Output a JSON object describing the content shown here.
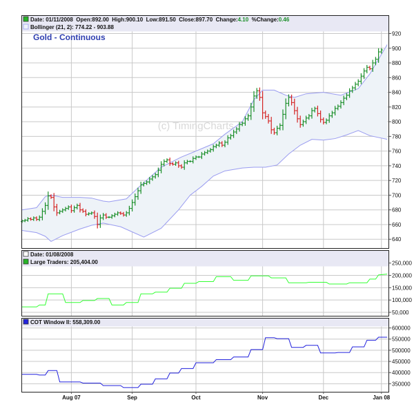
{
  "colors": {
    "frame": "#222222",
    "header_bg": "#e8e8f4",
    "grid": "#c8c8c8",
    "band_fill": "#eef3f8",
    "band_line": "#9a9cf0",
    "up_bar": "#1b8f2a",
    "down_bar": "#d42424",
    "title": "#2f3fb0",
    "green_marker": "#28b428",
    "large_traders_line": "#33ff33",
    "cot_line": "#2222dd",
    "watermark": "#d8d8d8"
  },
  "watermark": "(c) TimingCharts.com",
  "x_axis": {
    "ticks": [
      {
        "label": "Aug 07",
        "day": 17
      },
      {
        "label": "Sep",
        "day": 38
      },
      {
        "label": "Oct",
        "day": 60
      },
      {
        "label": "Nov",
        "day": 83
      },
      {
        "label": "Dec",
        "day": 104
      },
      {
        "label": "Jan 08",
        "day": 124
      }
    ]
  },
  "panels": [
    {
      "id": "price",
      "title": "Gold - Continuous",
      "legend": [
        {
          "marker": "green",
          "segments": [
            {
              "text": "Date: 01/11/2008  Open:892.00  High:900.10  Low:891.50  Close:897.70  Change:"
            },
            {
              "text": "4.10",
              "color": "green"
            },
            {
              "text": "  %Change:"
            },
            {
              "text": "0.46",
              "color": "green"
            }
          ]
        },
        {
          "marker": "band",
          "segments": [
            {
              "text": "Bollinger (21, 2): 774.22 - 903.88"
            }
          ]
        }
      ],
      "y_ticks": [
        "640",
        "660",
        "680",
        "700",
        "720",
        "740",
        "760",
        "780",
        "800",
        "820",
        "840",
        "860",
        "880",
        "900",
        "920"
      ]
    },
    {
      "id": "large-traders",
      "legend": [
        {
          "marker": "white",
          "segments": [
            {
              "text": "Date: 01/08/2008"
            }
          ]
        },
        {
          "marker": "green",
          "segments": [
            {
              "text": "Large Traders: 205,404.00"
            }
          ]
        }
      ],
      "y_ticks": [
        "50,000",
        "100,000",
        "150,000",
        "200,000",
        "250,000"
      ]
    },
    {
      "id": "cot",
      "legend": [
        {
          "marker": "blue",
          "segments": [
            {
              "text": "COT Window II: 558,309.00"
            }
          ]
        }
      ],
      "y_ticks": [
        "350000",
        "400000",
        "450000",
        "500000",
        "550000",
        "600000"
      ]
    }
  ],
  "chart_data": [
    {
      "type": "ohlc",
      "title": "Gold - Continuous",
      "x_unit": "trading day index (0 = first bar, ~late Jul 2007)",
      "x_ticks": [
        "Aug 07",
        "Sep",
        "Oct",
        "Nov",
        "Dec",
        "Jan 08"
      ],
      "ylim": [
        628,
        928
      ],
      "last_bar": {
        "date": "01/11/2008",
        "open": 892.0,
        "high": 900.1,
        "low": 891.5,
        "close": 897.7,
        "change": 4.1,
        "pct_change": 0.46
      },
      "close": [
        665,
        666,
        668,
        667,
        669,
        667,
        670,
        678,
        686,
        699,
        697,
        684,
        676,
        678,
        680,
        682,
        684,
        679,
        683,
        686,
        680,
        678,
        674,
        675,
        676,
        671,
        660,
        669,
        673,
        670,
        670,
        672,
        674,
        676,
        675,
        673,
        676,
        682,
        690,
        698,
        706,
        714,
        716,
        718,
        722,
        725,
        728,
        734,
        742,
        746,
        748,
        743,
        742,
        744,
        740,
        738,
        744,
        746,
        746,
        750,
        752,
        752,
        756,
        758,
        760,
        762,
        766,
        768,
        771,
        768,
        772,
        778,
        781,
        786,
        790,
        796,
        798,
        804,
        808,
        820,
        835,
        842,
        833,
        812,
        807,
        801,
        789,
        785,
        791,
        795,
        810,
        825,
        833,
        826,
        815,
        804,
        796,
        800,
        805,
        808,
        815,
        818,
        811,
        803,
        799,
        802,
        808,
        812,
        818,
        821,
        826,
        832,
        836,
        842,
        846,
        851,
        855,
        862,
        869,
        874,
        872,
        880,
        885,
        895,
        897.7
      ],
      "bollinger": {
        "period": 21,
        "stddev": 2,
        "upper": [
          [
            0,
            680
          ],
          [
            5,
            683
          ],
          [
            8,
            698
          ],
          [
            10,
            700
          ],
          [
            14,
            697
          ],
          [
            20,
            697
          ],
          [
            24,
            696
          ],
          [
            28,
            692
          ],
          [
            30,
            691
          ],
          [
            36,
            695
          ],
          [
            40,
            710
          ],
          [
            48,
            738
          ],
          [
            55,
            752
          ],
          [
            60,
            760
          ],
          [
            66,
            770
          ],
          [
            70,
            783
          ],
          [
            76,
            800
          ],
          [
            80,
            830
          ],
          [
            83,
            843
          ],
          [
            87,
            843
          ],
          [
            91,
            836
          ],
          [
            94,
            833
          ],
          [
            98,
            838
          ],
          [
            104,
            840
          ],
          [
            110,
            836
          ],
          [
            116,
            845
          ],
          [
            120,
            865
          ],
          [
            126,
            905
          ]
        ],
        "lower": [
          [
            0,
            652
          ],
          [
            5,
            649
          ],
          [
            8,
            644
          ],
          [
            10,
            637
          ],
          [
            14,
            645
          ],
          [
            20,
            654
          ],
          [
            24,
            659
          ],
          [
            28,
            662
          ],
          [
            34,
            657
          ],
          [
            38,
            650
          ],
          [
            42,
            643
          ],
          [
            48,
            655
          ],
          [
            54,
            680
          ],
          [
            58,
            700
          ],
          [
            62,
            712
          ],
          [
            66,
            726
          ],
          [
            70,
            733
          ],
          [
            76,
            737
          ],
          [
            80,
            738
          ],
          [
            84,
            738
          ],
          [
            88,
            741
          ],
          [
            92,
            756
          ],
          [
            96,
            768
          ],
          [
            100,
            776
          ],
          [
            104,
            775
          ],
          [
            108,
            777
          ],
          [
            112,
            782
          ],
          [
            116,
            788
          ],
          [
            120,
            781
          ],
          [
            126,
            776
          ]
        ],
        "last_range": [
          774.22,
          903.88
        ]
      }
    },
    {
      "type": "line",
      "title": "Large Traders",
      "ylim": [
        36000,
        266000
      ],
      "last_value": {
        "date": "01/08/2008",
        "value": 205404.0
      },
      "points": [
        [
          0,
          72000
        ],
        [
          5,
          72000
        ],
        [
          6,
          80000
        ],
        [
          8,
          80000
        ],
        [
          9,
          125000
        ],
        [
          14,
          125000
        ],
        [
          15,
          90000
        ],
        [
          20,
          90000
        ],
        [
          21,
          98000
        ],
        [
          25,
          98000
        ],
        [
          26,
          106000
        ],
        [
          30,
          106000
        ],
        [
          31,
          80000
        ],
        [
          35,
          80000
        ],
        [
          36,
          90000
        ],
        [
          40,
          90000
        ],
        [
          41,
          125000
        ],
        [
          45,
          125000
        ],
        [
          46,
          132000
        ],
        [
          50,
          132000
        ],
        [
          51,
          148000
        ],
        [
          55,
          148000
        ],
        [
          56,
          168000
        ],
        [
          60,
          168000
        ],
        [
          61,
          175000
        ],
        [
          66,
          175000
        ],
        [
          67,
          195000
        ],
        [
          72,
          195000
        ],
        [
          73,
          180000
        ],
        [
          78,
          180000
        ],
        [
          79,
          198000
        ],
        [
          85,
          198000
        ],
        [
          86,
          190000
        ],
        [
          91,
          190000
        ],
        [
          92,
          170000
        ],
        [
          98,
          170000
        ],
        [
          99,
          172000
        ],
        [
          105,
          172000
        ],
        [
          106,
          165000
        ],
        [
          112,
          165000
        ],
        [
          113,
          170000
        ],
        [
          119,
          170000
        ],
        [
          120,
          185000
        ],
        [
          122,
          185000
        ],
        [
          123,
          202000
        ],
        [
          126,
          205404
        ]
      ]
    },
    {
      "type": "line",
      "title": "COT Window II",
      "ylim": [
        314000,
        608000
      ],
      "last_value": {
        "value": 558309.0
      },
      "points": [
        [
          0,
          392000
        ],
        [
          5,
          392000
        ],
        [
          6,
          389000
        ],
        [
          8,
          389000
        ],
        [
          9,
          409000
        ],
        [
          12,
          409000
        ],
        [
          13,
          358000
        ],
        [
          20,
          358000
        ],
        [
          21,
          353000
        ],
        [
          27,
          353000
        ],
        [
          28,
          342000
        ],
        [
          34,
          342000
        ],
        [
          35,
          333000
        ],
        [
          40,
          333000
        ],
        [
          41,
          348000
        ],
        [
          45,
          348000
        ],
        [
          46,
          372000
        ],
        [
          50,
          372000
        ],
        [
          51,
          398000
        ],
        [
          54,
          398000
        ],
        [
          55,
          418000
        ],
        [
          59,
          418000
        ],
        [
          60,
          444000
        ],
        [
          66,
          444000
        ],
        [
          67,
          458000
        ],
        [
          72,
          458000
        ],
        [
          73,
          470000
        ],
        [
          78,
          470000
        ],
        [
          79,
          503000
        ],
        [
          83,
          503000
        ],
        [
          84,
          556000
        ],
        [
          87,
          556000
        ],
        [
          88,
          552000
        ],
        [
          92,
          552000
        ],
        [
          93,
          513000
        ],
        [
          97,
          513000
        ],
        [
          98,
          522000
        ],
        [
          102,
          522000
        ],
        [
          103,
          488000
        ],
        [
          108,
          488000
        ],
        [
          109,
          490000
        ],
        [
          113,
          490000
        ],
        [
          114,
          515000
        ],
        [
          118,
          515000
        ],
        [
          119,
          545000
        ],
        [
          122,
          545000
        ],
        [
          123,
          558309
        ],
        [
          126,
          558309
        ]
      ]
    }
  ]
}
